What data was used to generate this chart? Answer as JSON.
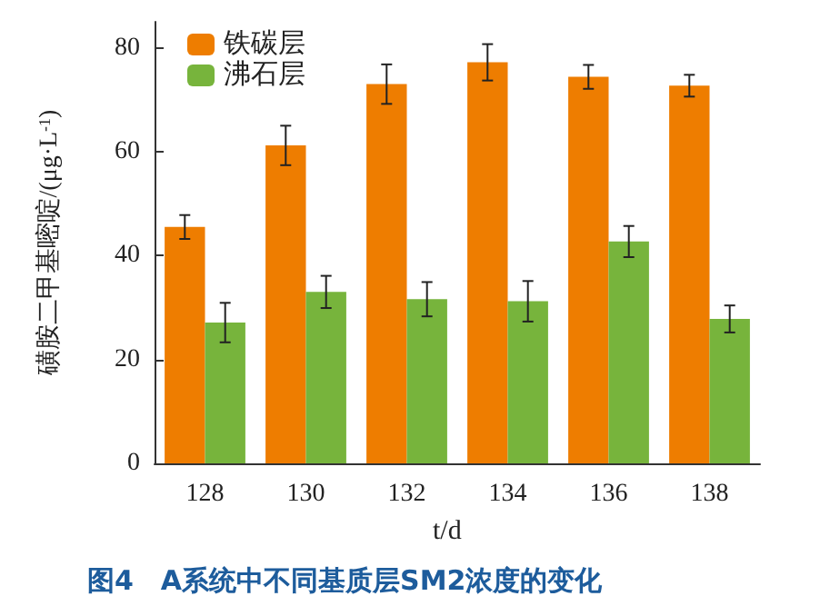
{
  "chart_data": {
    "type": "bar",
    "xlabel": "t/d",
    "ylabel": "磺胺二甲基嘧啶/(μg·L$^{-1}$)",
    "annotations": [
      "图4　A系统中不同基质层SM2浓度的变化"
    ],
    "categories": [
      "128",
      "130",
      "132",
      "134",
      "136",
      "138"
    ],
    "series": [
      {
        "name": "铁碳层",
        "color": "#ee7d00",
        "values": [
          45.5,
          61.2,
          73.0,
          77.2,
          74.4,
          72.7
        ],
        "errors": [
          2.3,
          3.8,
          3.8,
          3.5,
          2.3,
          2.1
        ]
      },
      {
        "name": "沸石层",
        "color": "#77b43c",
        "values": [
          27.1,
          33.0,
          31.6,
          31.2,
          42.7,
          27.8
        ],
        "errors": [
          3.8,
          3.1,
          3.3,
          3.9,
          3.0,
          2.6
        ]
      }
    ],
    "ylim": [
      0,
      85
    ],
    "yticks": [
      0,
      20,
      40,
      60,
      80
    ],
    "grid": false,
    "legend": "top left"
  }
}
